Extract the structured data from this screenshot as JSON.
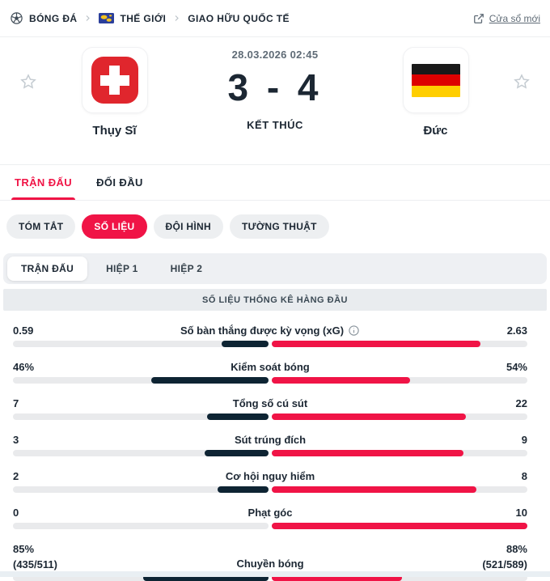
{
  "breadcrumb": {
    "items": [
      {
        "label": "BÓNG ĐÁ",
        "icon": "soccer-ball-icon"
      },
      {
        "label": "THẾ GIỚI",
        "icon": "world-flag-icon"
      },
      {
        "label": "GIAO HỮU QUỐC TẾ",
        "icon": null
      }
    ],
    "new_window_label": "Cửa sổ mới"
  },
  "match": {
    "datetime": "28.03.2026 02:45",
    "score": "3 - 4",
    "status": "KẾT THÚC",
    "home": {
      "name": "Thụy Sĩ",
      "flag": "switzerland-flag"
    },
    "away": {
      "name": "Đức",
      "flag": "germany-flag"
    }
  },
  "tabs": {
    "primary": [
      {
        "label": "TRẬN ĐẤU",
        "active": true
      },
      {
        "label": "ĐỐI ĐẦU",
        "active": false
      }
    ],
    "secondary": [
      {
        "label": "TÓM TẮT",
        "active": false
      },
      {
        "label": "SỐ LIỆU",
        "active": true
      },
      {
        "label": "ĐỘI HÌNH",
        "active": false
      },
      {
        "label": "TƯỜNG THUẬT",
        "active": false
      }
    ],
    "period": [
      {
        "label": "TRẬN ĐẤU",
        "active": true
      },
      {
        "label": "HIỆP 1",
        "active": false
      },
      {
        "label": "HIỆP 2",
        "active": false
      }
    ]
  },
  "stats": {
    "section_title": "SỐ LIỆU THỐNG KÊ HÀNG ĐẦU",
    "rows": [
      {
        "label": "Số bàn thắng được kỳ vọng (xG)",
        "home": "0.59",
        "away": "2.63",
        "home_val": 0.59,
        "away_val": 2.63,
        "info": true
      },
      {
        "label": "Kiểm soát bóng",
        "home": "46%",
        "away": "54%",
        "home_val": 46,
        "away_val": 54
      },
      {
        "label": "Tổng số cú sút",
        "home": "7",
        "away": "22",
        "home_val": 7,
        "away_val": 22
      },
      {
        "label": "Sút trúng đích",
        "home": "3",
        "away": "9",
        "home_val": 3,
        "away_val": 9
      },
      {
        "label": "Cơ hội nguy hiểm",
        "home": "2",
        "away": "8",
        "home_val": 2,
        "away_val": 8
      },
      {
        "label": "Phạt góc",
        "home": "0",
        "away": "10",
        "home_val": 0,
        "away_val": 10
      },
      {
        "label": "Chuyền bóng",
        "home": "85%",
        "home_sub": "(435/511)",
        "away": "88%",
        "away_sub": "(521/589)",
        "home_val": 85,
        "away_val": 88
      }
    ]
  },
  "colors": {
    "accent": "#f01446",
    "home_bar": "#0e2433",
    "away_bar": "#f01446",
    "track": "#e9eaec"
  }
}
